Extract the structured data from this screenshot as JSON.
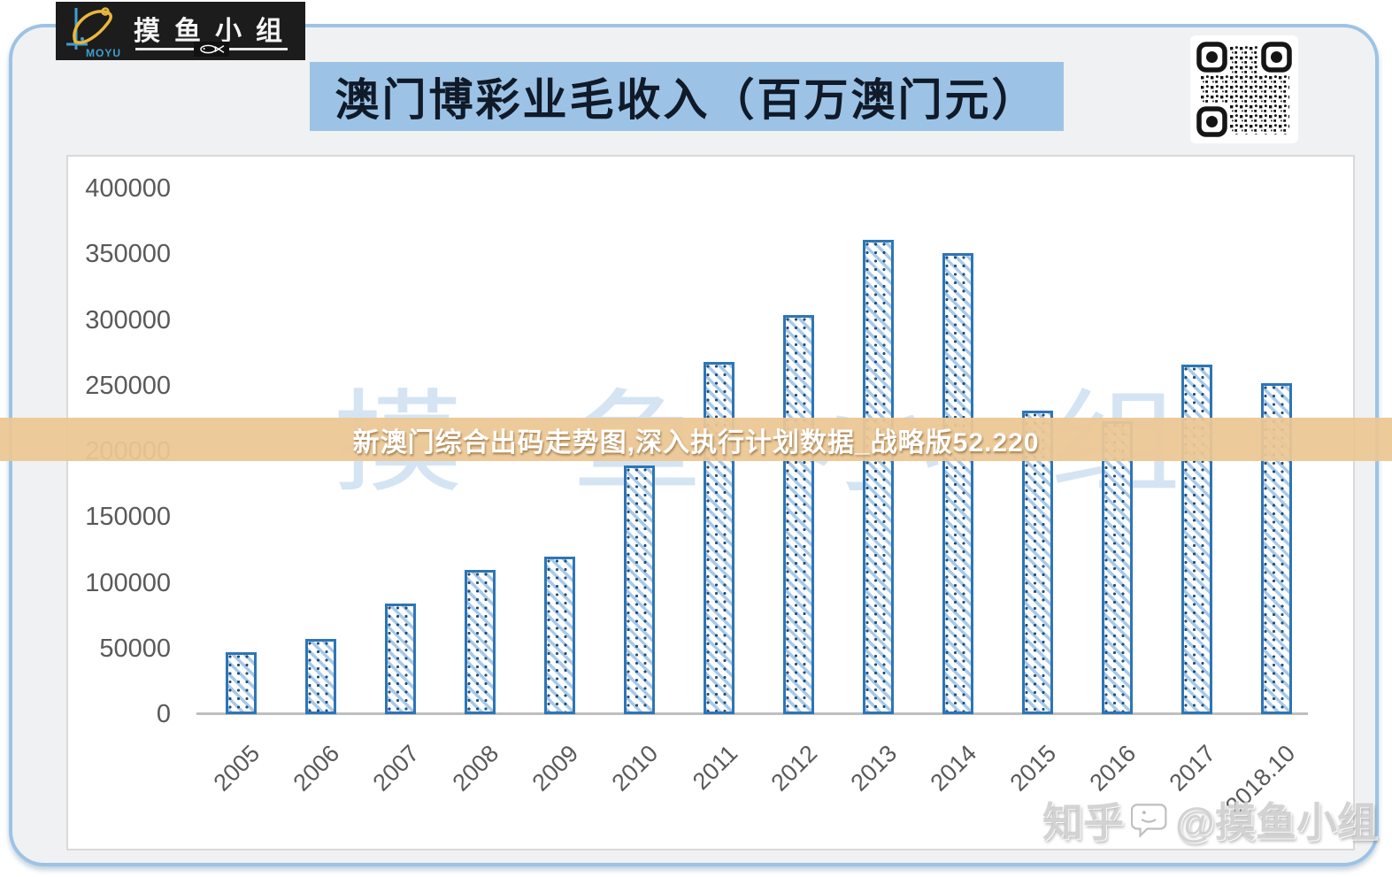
{
  "brand": {
    "name_cn": "摸鱼小组",
    "name_en": "MOYU"
  },
  "title": "澳门博彩业毛收入（百万澳门元）",
  "overlay": {
    "text": "新澳门综合出码走势图,深入执行计划数据_战略版52.220",
    "background": "#ecc794"
  },
  "watermark_center": {
    "chars": [
      "摸",
      "鱼",
      "小",
      "组"
    ],
    "color": "#d5e4f3"
  },
  "watermark_corner": {
    "prefix": "知乎",
    "handle": "@摸鱼小组"
  },
  "colors": {
    "banner_bg": "#9cc3e6",
    "banner_text": "#101a28",
    "bar_border": "#2e75b6",
    "bar_stripe": "#a9c9e8",
    "bar_dot": "#1f4e79",
    "axis_label": "#595959",
    "axis_line": "#bfbfbf",
    "card_border": "#9cc3e6",
    "card_bg": "#f0f1f2"
  },
  "chart_data": {
    "type": "bar",
    "title": "澳门博彩业毛收入（百万澳门元）",
    "unit": "百万澳门元",
    "categories": [
      "2005",
      "2006",
      "2007",
      "2008",
      "2009",
      "2010",
      "2011",
      "2012",
      "2013",
      "2014",
      "2015",
      "2016",
      "2017",
      "2018.10"
    ],
    "values": [
      47000,
      57000,
      84000,
      110000,
      120000,
      189000,
      268000,
      304000,
      361000,
      351000,
      231000,
      223000,
      266000,
      252000
    ],
    "yticks": [
      400000,
      350000,
      300000,
      250000,
      200000,
      150000,
      100000,
      50000,
      0
    ],
    "ylim": [
      0,
      400000
    ],
    "ytick_interval": 50000,
    "grid": false,
    "legend": "none",
    "bar_pattern": "diagonal-hatch",
    "x_label_rotation": -45
  }
}
